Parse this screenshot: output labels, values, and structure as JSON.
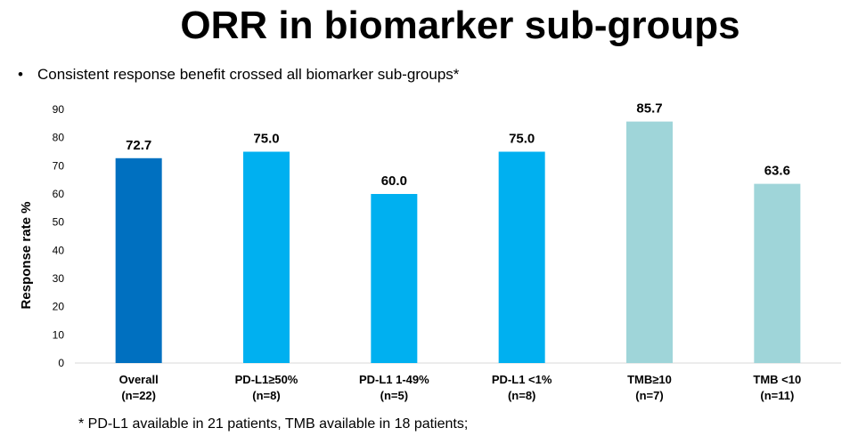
{
  "slide": {
    "title": "ORR in biomarker sub-groups",
    "bullet": "Consistent response benefit crossed all biomarker sub-groups*",
    "footnote": "* PD-L1 available in 21 patients, TMB available in 18 patients;"
  },
  "chart_data": {
    "type": "bar",
    "categories": [
      "Overall",
      "PD-L1≥50%",
      "PD-L1 1-49%",
      "PD-L1 <1%",
      "TMB≥10",
      "TMB <10"
    ],
    "category_sublabels": [
      "(n=22)",
      "(n=8)",
      "(n=5)",
      "(n=8)",
      "(n=7)",
      "(n=11)"
    ],
    "values": [
      72.7,
      75.0,
      60.0,
      75.0,
      85.7,
      63.6
    ],
    "data_labels": [
      "72.7",
      "75.0",
      "60.0",
      "75.0",
      "85.7",
      "63.6"
    ],
    "bar_colors": [
      "#0070C0",
      "#00B0F0",
      "#00B0F0",
      "#00B0F0",
      "#9FD5D9",
      "#9FD5D9"
    ],
    "ylabel": "Response rate %",
    "xlabel": "",
    "ylim": [
      0,
      90
    ],
    "yticks": [
      0,
      10,
      20,
      30,
      40,
      50,
      60,
      70,
      80,
      90
    ],
    "grid": false,
    "legend": "none"
  }
}
